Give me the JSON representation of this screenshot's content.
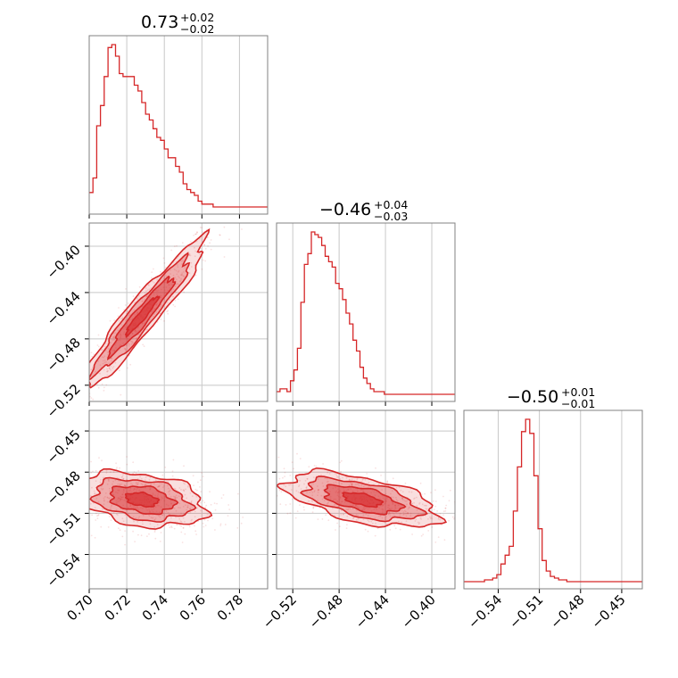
{
  "chart_data": {
    "type": "corner",
    "color": "#d62728",
    "parameters": [
      {
        "median": "0.73",
        "plus": "+0.02",
        "minus": "−0.02",
        "range": [
          0.7,
          0.795
        ],
        "ticks": [
          0.7,
          0.72,
          0.74,
          0.76,
          0.78
        ],
        "tick_labels": [
          "0.70",
          "0.72",
          "0.74",
          "0.76",
          "0.78"
        ]
      },
      {
        "median": "−0.46",
        "plus": "+0.04",
        "minus": "−0.03",
        "range": [
          -0.534,
          -0.38
        ],
        "ticks": [
          -0.52,
          -0.48,
          -0.44,
          -0.4
        ],
        "tick_labels": [
          "−0.52",
          "−0.48",
          "−0.44",
          "−0.40"
        ]
      },
      {
        "median": "−0.50",
        "plus": "+0.01",
        "minus": "−0.01",
        "range": [
          -0.565,
          -0.435
        ],
        "ticks": [
          -0.54,
          -0.51,
          -0.48,
          -0.45
        ],
        "tick_labels": [
          "−0.54",
          "−0.51",
          "−0.48",
          "−0.45"
        ]
      }
    ],
    "histograms": [
      {
        "param": 0,
        "bin_start": 0.7,
        "bin_width": 0.002,
        "counts": [
          5,
          10,
          28,
          35,
          45,
          55,
          56,
          52,
          46,
          45,
          45,
          45,
          42,
          40,
          36,
          32,
          30,
          27,
          24,
          23,
          20,
          17,
          17,
          14,
          12,
          8,
          6,
          5,
          4,
          2,
          1,
          1,
          1,
          0,
          0,
          0,
          0,
          0,
          0,
          0,
          0,
          0,
          0,
          0,
          0,
          0,
          0,
          0
        ]
      },
      {
        "param": 1,
        "bin_start": -0.534,
        "bin_width": 0.003,
        "counts": [
          1,
          2,
          2,
          1,
          5,
          9,
          17,
          34,
          48,
          52,
          60,
          59,
          58,
          55,
          51,
          49,
          47,
          41,
          39,
          35,
          30,
          26,
          20,
          16,
          10,
          6,
          4,
          2,
          1,
          1,
          1,
          0,
          0,
          0,
          0,
          0,
          0,
          0,
          0,
          0,
          0,
          0,
          0,
          0,
          0,
          0,
          0,
          0,
          0,
          0,
          0,
          0
        ]
      },
      {
        "param": 2,
        "bin_start": -0.565,
        "bin_width": 0.003,
        "counts": [
          0,
          0,
          0,
          0,
          0,
          1,
          1,
          2,
          4,
          10,
          15,
          20,
          40,
          65,
          85,
          92,
          84,
          60,
          30,
          12,
          6,
          3,
          2,
          1,
          1,
          0,
          0,
          0,
          0,
          0,
          0,
          0,
          0,
          0,
          0,
          0,
          0,
          0,
          0,
          0,
          0,
          0,
          0,
          0
        ]
      }
    ],
    "pairs": [
      {
        "x_param": 0,
        "y_param": 1,
        "center": [
          0.728,
          -0.46
        ],
        "sd": [
          0.017,
          0.033
        ],
        "corr": 0.95
      },
      {
        "x_param": 0,
        "y_param": 2,
        "center": [
          0.728,
          -0.5
        ],
        "sd": [
          0.017,
          0.01
        ],
        "corr": -0.3
      },
      {
        "x_param": 1,
        "y_param": 2,
        "center": [
          -0.46,
          -0.5
        ],
        "sd": [
          0.033,
          0.01
        ],
        "corr": -0.55
      }
    ]
  }
}
